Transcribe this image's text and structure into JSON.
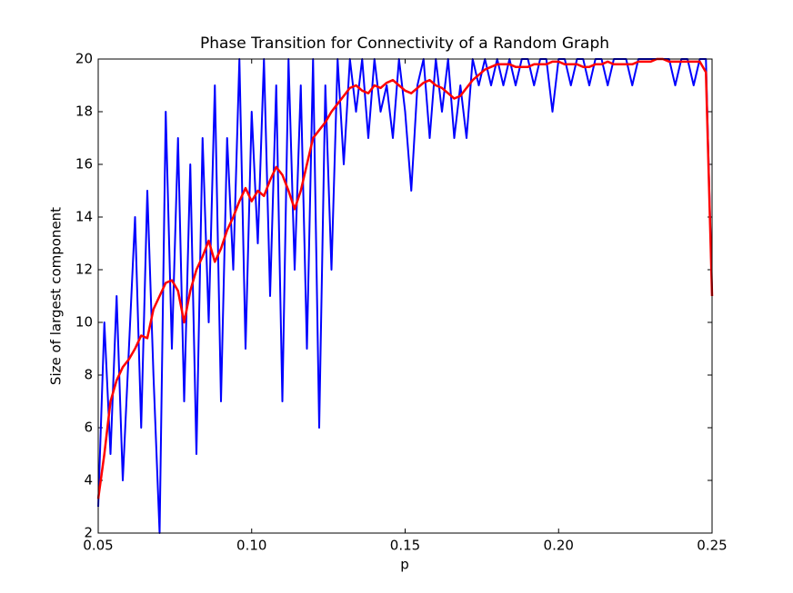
{
  "chart_data": {
    "type": "line",
    "title": "Phase Transition for Connectivity of a Random Graph",
    "x_label": "p",
    "y_label": "Size of largest component",
    "x": [
      0.05,
      0.052,
      0.054,
      0.056,
      0.058,
      0.06,
      0.062,
      0.064,
      0.066,
      0.068,
      0.07,
      0.072,
      0.074,
      0.076,
      0.078,
      0.08,
      0.082,
      0.084,
      0.086,
      0.088,
      0.09,
      0.092,
      0.094,
      0.096,
      0.098,
      0.1,
      0.102,
      0.104,
      0.106,
      0.108,
      0.11,
      0.112,
      0.114,
      0.116,
      0.118,
      0.12,
      0.122,
      0.124,
      0.126,
      0.128,
      0.13,
      0.132,
      0.134,
      0.136,
      0.138,
      0.14,
      0.142,
      0.144,
      0.146,
      0.148,
      0.15,
      0.152,
      0.154,
      0.156,
      0.158,
      0.16,
      0.162,
      0.164,
      0.166,
      0.168,
      0.17,
      0.172,
      0.174,
      0.176,
      0.178,
      0.18,
      0.182,
      0.184,
      0.186,
      0.188,
      0.19,
      0.192,
      0.194,
      0.196,
      0.198,
      0.2,
      0.202,
      0.204,
      0.206,
      0.208,
      0.21,
      0.212,
      0.214,
      0.216,
      0.218,
      0.22,
      0.222,
      0.224,
      0.226,
      0.228,
      0.23,
      0.232,
      0.234,
      0.236,
      0.238,
      0.24,
      0.242,
      0.244,
      0.246,
      0.248,
      0.25
    ],
    "series": [
      {
        "color": "#0000ff",
        "values": [
          3,
          10,
          5,
          11,
          4,
          9,
          14,
          6,
          15,
          8,
          2,
          18,
          9,
          17,
          7,
          16,
          5,
          17,
          10,
          19,
          7,
          17,
          12,
          20,
          9,
          18,
          13,
          20,
          11,
          19,
          7,
          20,
          12,
          19,
          9,
          20,
          6,
          19,
          12,
          20,
          16,
          20,
          18,
          20,
          17,
          20,
          18,
          19,
          17,
          20,
          18,
          15,
          19,
          20,
          17,
          20,
          18,
          20,
          17,
          19,
          17,
          20,
          19,
          20,
          19,
          20,
          19,
          20,
          19,
          20,
          20,
          19,
          20,
          20,
          18,
          20,
          20,
          19,
          20,
          20,
          19,
          20,
          20,
          19,
          20,
          20,
          20,
          19,
          20,
          20,
          20,
          20,
          20,
          20,
          19,
          20,
          20,
          19,
          20,
          20,
          11
        ]
      },
      {
        "color": "#ff0000",
        "values": [
          3.3,
          5,
          7,
          7.8,
          8.3,
          8.6,
          9,
          9.5,
          9.4,
          10.5,
          11,
          11.5,
          11.6,
          11.2,
          10,
          11.2,
          12,
          12.5,
          13.1,
          12.3,
          12.8,
          13.5,
          14,
          14.6,
          15.1,
          14.6,
          15,
          14.8,
          15.4,
          15.9,
          15.6,
          15,
          14.3,
          15,
          16,
          17,
          17.3,
          17.6,
          18,
          18.3,
          18.6,
          18.9,
          19,
          18.8,
          18.7,
          19,
          18.9,
          19.1,
          19.2,
          19,
          18.8,
          18.7,
          18.9,
          19.1,
          19.2,
          19,
          18.9,
          18.7,
          18.5,
          18.6,
          18.9,
          19.2,
          19.4,
          19.6,
          19.7,
          19.8,
          19.8,
          19.8,
          19.7,
          19.7,
          19.7,
          19.8,
          19.8,
          19.8,
          19.9,
          19.9,
          19.8,
          19.8,
          19.8,
          19.7,
          19.7,
          19.8,
          19.8,
          19.9,
          19.8,
          19.8,
          19.8,
          19.8,
          19.9,
          19.9,
          19.9,
          20,
          20,
          19.9,
          19.9,
          19.9,
          19.9,
          19.9,
          19.9,
          19.5,
          11
        ]
      }
    ],
    "xlim": [
      0.05,
      0.25
    ],
    "xticks": [
      0.05,
      {
        "value": 0.1,
        "label": "0.10"
      },
      0.15,
      {
        "value": 0.2,
        "label": "0.20"
      },
      0.25
    ],
    "ylim": [
      2,
      20
    ],
    "yticks": [
      2,
      4,
      6,
      8,
      10,
      12,
      14,
      16,
      18,
      20
    ]
  }
}
